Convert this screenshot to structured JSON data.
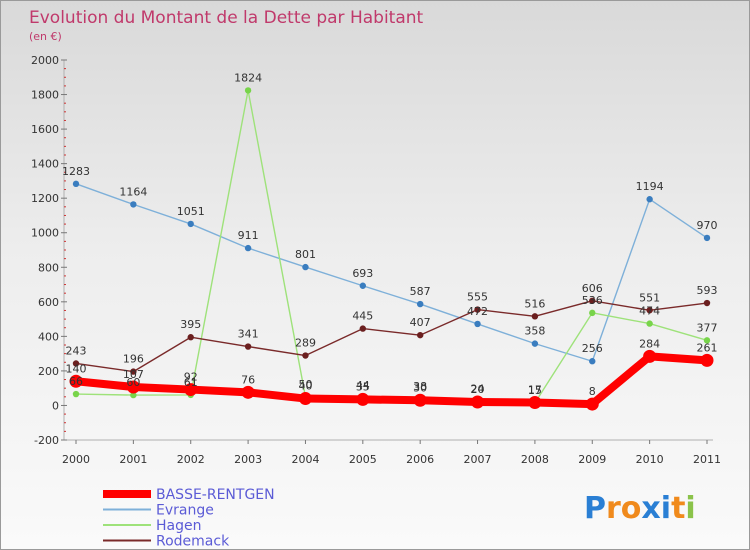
{
  "chart_data": {
    "type": "line",
    "title": "Evolution du Montant de la Dette par Habitant",
    "subtitle": "(en €)",
    "x": [
      "2000",
      "2001",
      "2002",
      "2003",
      "2004",
      "2005",
      "2006",
      "2007",
      "2008",
      "2009",
      "2010",
      "2011"
    ],
    "ylim": [
      -200,
      2000
    ],
    "yticks": [
      -200,
      0,
      200,
      400,
      600,
      800,
      1000,
      1200,
      1400,
      1600,
      1800,
      2000
    ],
    "grid": false,
    "legend_position": "bottom-left",
    "series": [
      {
        "name": "BASSE-RENTGEN",
        "color": "#ff0000",
        "marker": "#ff0000",
        "values": [
          140,
          107,
          92,
          76,
          40,
          35,
          30,
          20,
          17,
          8,
          284,
          261
        ]
      },
      {
        "name": "Evrange",
        "color": "#7eb0d9",
        "marker": "#3a7dbf",
        "values": [
          1283,
          1164,
          1051,
          911,
          801,
          693,
          587,
          472,
          358,
          256,
          1194,
          970
        ]
      },
      {
        "name": "Hagen",
        "color": "#9ee27a",
        "marker": "#78d44a",
        "values": [
          66,
          60,
          61,
          1824,
          50,
          44,
          38,
          24,
          15,
          536,
          474,
          377
        ]
      },
      {
        "name": "Rodemack",
        "color": "#7a2a2a",
        "marker": "#6b1f1f",
        "values": [
          243,
          196,
          395,
          341,
          289,
          445,
          407,
          555,
          516,
          606,
          551,
          593
        ]
      }
    ]
  },
  "logo": {
    "text": "Proxiti"
  }
}
